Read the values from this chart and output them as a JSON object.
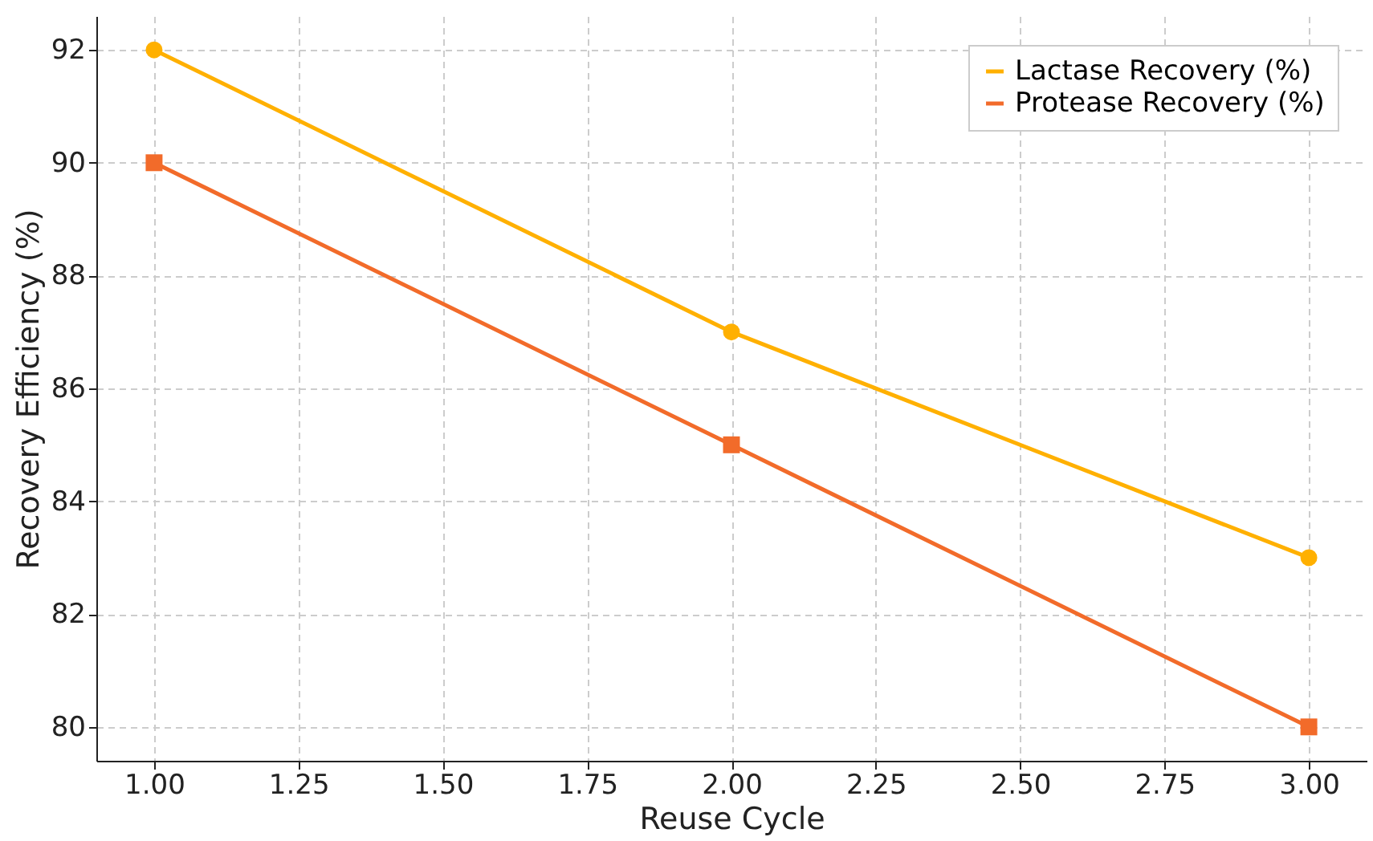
{
  "chart_data": {
    "type": "line",
    "xlabel": "Reuse Cycle",
    "ylabel": "Recovery Efficiency (%)",
    "x": [
      1,
      2,
      3
    ],
    "series": [
      {
        "name": "Lactase Recovery (%)",
        "color": "#ffb000",
        "values": [
          92,
          87,
          83
        ],
        "marker": "circle"
      },
      {
        "name": "Protease Recovery (%)",
        "color": "#f26b2a",
        "values": [
          90,
          85,
          80
        ],
        "marker": "square"
      }
    ],
    "xlim": [
      0.9,
      3.1
    ],
    "xticks": [
      {
        "value": 1,
        "label": "1.00"
      },
      {
        "value": 1.25,
        "label": "1.25"
      },
      {
        "value": 1.5,
        "label": "1.50"
      },
      {
        "value": 1.75,
        "label": "1.75"
      },
      {
        "value": 2,
        "label": "2.00"
      },
      {
        "value": 2.25,
        "label": "2.25"
      },
      {
        "value": 2.5,
        "label": "2.50"
      },
      {
        "value": 2.75,
        "label": "2.75"
      },
      {
        "value": 3,
        "label": "3.00"
      }
    ],
    "ylim": [
      79.4,
      92.6
    ],
    "yticks": [
      80,
      82,
      84,
      86,
      88,
      90,
      92
    ],
    "grid": true,
    "legend": "top right",
    "line_style": "solid"
  }
}
